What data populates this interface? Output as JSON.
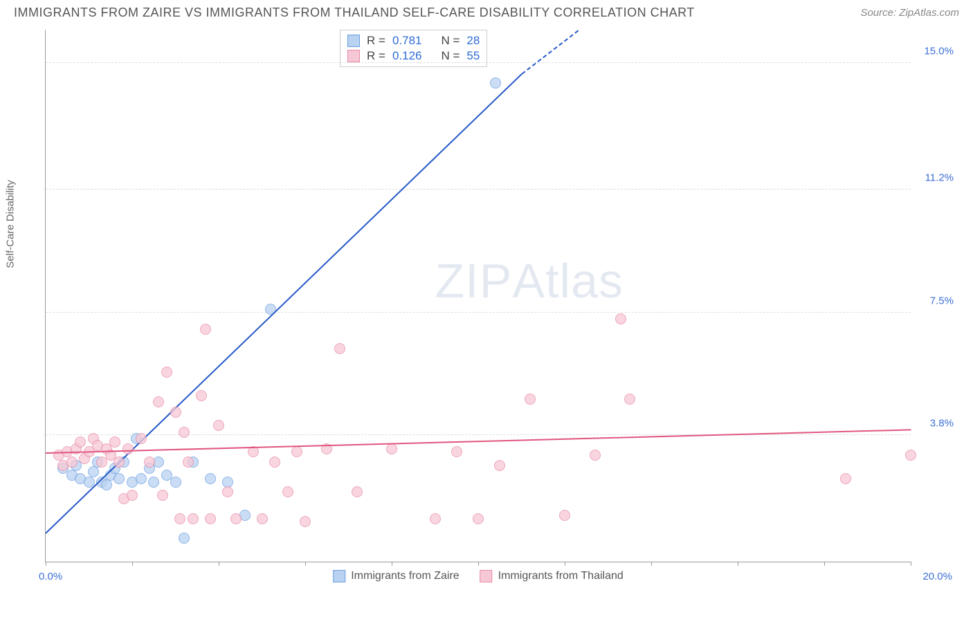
{
  "title": "IMMIGRANTS FROM ZAIRE VS IMMIGRANTS FROM THAILAND SELF-CARE DISABILITY CORRELATION CHART",
  "source": "Source: ZipAtlas.com",
  "y_axis_label": "Self-Care Disability",
  "watermark_a": "ZIP",
  "watermark_b": "Atlas",
  "chart": {
    "type": "scatter",
    "xlim": [
      0,
      20
    ],
    "ylim": [
      0,
      16
    ],
    "x_min_label": "0.0%",
    "x_max_label": "20.0%",
    "y_grid": [
      {
        "v": 3.8,
        "label": "3.8%"
      },
      {
        "v": 7.5,
        "label": "7.5%"
      },
      {
        "v": 11.2,
        "label": "11.2%"
      },
      {
        "v": 15.0,
        "label": "15.0%"
      }
    ],
    "x_ticks": [
      0,
      2,
      4,
      6,
      8,
      10,
      12,
      14,
      16,
      18,
      20
    ],
    "series": [
      {
        "name": "Immigrants from Zaire",
        "label": "Immigrants from Zaire",
        "fill": "#b9d2f1",
        "stroke": "#6a9de0",
        "line_color": "#2458c7",
        "r_label": "R =",
        "r": "0.781",
        "n_label": "N =",
        "n": "28",
        "trend": {
          "x1": 0,
          "y1": 0.9,
          "x2": 11.0,
          "y2": 14.7,
          "dash_to_x": 12.3,
          "dash_to_y": 16.0
        },
        "points": [
          [
            0.4,
            2.8
          ],
          [
            0.6,
            2.6
          ],
          [
            0.7,
            2.9
          ],
          [
            0.8,
            2.5
          ],
          [
            1.0,
            2.4
          ],
          [
            1.1,
            2.7
          ],
          [
            1.2,
            3.0
          ],
          [
            1.3,
            2.4
          ],
          [
            1.4,
            2.3
          ],
          [
            1.5,
            2.6
          ],
          [
            1.6,
            2.8
          ],
          [
            1.7,
            2.5
          ],
          [
            1.8,
            3.0
          ],
          [
            2.0,
            2.4
          ],
          [
            2.1,
            3.7
          ],
          [
            2.2,
            2.5
          ],
          [
            2.4,
            2.8
          ],
          [
            2.5,
            2.4
          ],
          [
            2.6,
            3.0
          ],
          [
            2.8,
            2.6
          ],
          [
            3.0,
            2.4
          ],
          [
            3.2,
            0.7
          ],
          [
            3.4,
            3.0
          ],
          [
            3.8,
            2.5
          ],
          [
            4.2,
            2.4
          ],
          [
            4.6,
            1.4
          ],
          [
            5.2,
            7.6
          ],
          [
            10.4,
            14.4
          ]
        ]
      },
      {
        "name": "Immigrants from Thailand",
        "label": "Immigrants from Thailand",
        "fill": "#f6c8d5",
        "stroke": "#e78aa6",
        "line_color": "#e0557e",
        "r_label": "R =",
        "r": "0.126",
        "n_label": "N =",
        "n": "55",
        "trend": {
          "x1": 0,
          "y1": 3.3,
          "x2": 20,
          "y2": 4.0
        },
        "points": [
          [
            0.3,
            3.2
          ],
          [
            0.4,
            2.9
          ],
          [
            0.5,
            3.3
          ],
          [
            0.6,
            3.0
          ],
          [
            0.7,
            3.4
          ],
          [
            0.8,
            3.6
          ],
          [
            0.9,
            3.1
          ],
          [
            1.0,
            3.3
          ],
          [
            1.1,
            3.7
          ],
          [
            1.2,
            3.5
          ],
          [
            1.3,
            3.0
          ],
          [
            1.4,
            3.4
          ],
          [
            1.5,
            3.2
          ],
          [
            1.6,
            3.6
          ],
          [
            1.7,
            3.0
          ],
          [
            1.8,
            1.9
          ],
          [
            1.9,
            3.4
          ],
          [
            2.0,
            2.0
          ],
          [
            2.2,
            3.7
          ],
          [
            2.4,
            3.0
          ],
          [
            2.6,
            4.8
          ],
          [
            2.7,
            2.0
          ],
          [
            2.8,
            5.7
          ],
          [
            3.0,
            4.5
          ],
          [
            3.1,
            1.3
          ],
          [
            3.2,
            3.9
          ],
          [
            3.3,
            3.0
          ],
          [
            3.4,
            1.3
          ],
          [
            3.6,
            5.0
          ],
          [
            3.7,
            7.0
          ],
          [
            3.8,
            1.3
          ],
          [
            4.0,
            4.1
          ],
          [
            4.2,
            2.1
          ],
          [
            4.4,
            1.3
          ],
          [
            4.8,
            3.3
          ],
          [
            5.0,
            1.3
          ],
          [
            5.3,
            3.0
          ],
          [
            5.6,
            2.1
          ],
          [
            5.8,
            3.3
          ],
          [
            6.0,
            1.2
          ],
          [
            6.5,
            3.4
          ],
          [
            6.8,
            6.4
          ],
          [
            7.2,
            2.1
          ],
          [
            8.0,
            3.4
          ],
          [
            9.0,
            1.3
          ],
          [
            9.5,
            3.3
          ],
          [
            10.0,
            1.3
          ],
          [
            10.5,
            2.9
          ],
          [
            11.2,
            4.9
          ],
          [
            12.0,
            1.4
          ],
          [
            12.7,
            3.2
          ],
          [
            13.3,
            7.3
          ],
          [
            13.5,
            4.9
          ],
          [
            18.5,
            2.5
          ],
          [
            20.0,
            3.2
          ]
        ]
      }
    ]
  }
}
